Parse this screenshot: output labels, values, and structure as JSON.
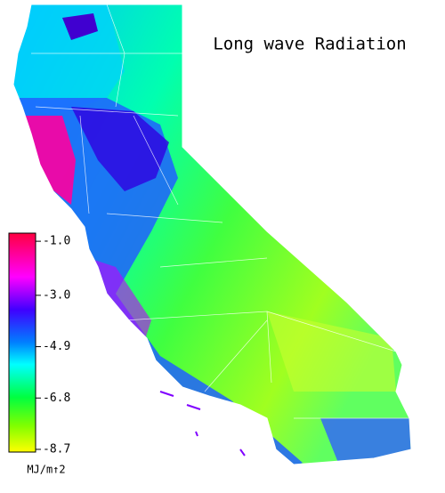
{
  "title": "Long wave Radiation",
  "colorbar": {
    "range": [
      -0.7,
      -8.8
    ],
    "ticks": [
      {
        "value": -1.0,
        "label": "-1.0"
      },
      {
        "value": -3.0,
        "label": "-3.0"
      },
      {
        "value": -4.9,
        "label": "-4.9"
      },
      {
        "value": -6.8,
        "label": "-6.8"
      },
      {
        "value": -8.7,
        "label": "-8.7"
      }
    ],
    "unit": "MJ/m↑2"
  }
}
